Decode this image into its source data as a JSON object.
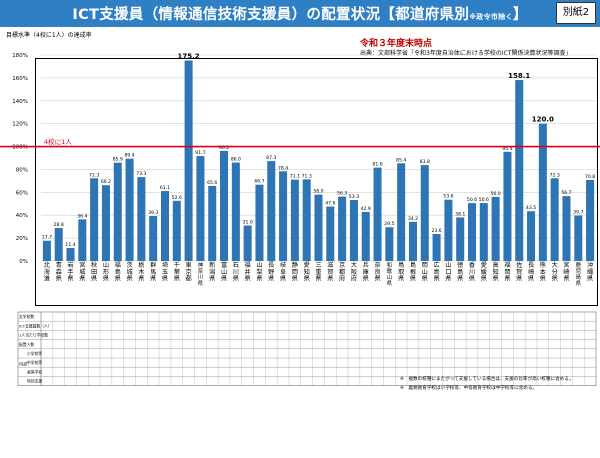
{
  "header": {
    "title_main": "ICT支援員（情報通信技術支援員）の配置状況【都道府県別",
    "title_note": "※政令市除く",
    "title_end": "】",
    "badge": "別紙2"
  },
  "annotations": {
    "y_axis_caption": "目標水準（4校に1人）の達成率",
    "period": "令和３年度末時点",
    "source": "出典：文部科学省「令和3年度自治体における学校のICT関係決算状況等調査」",
    "target_line_label": "4校に1人"
  },
  "colors": {
    "bar": "#2e75b6",
    "target_line": "#d9001b",
    "title_bg": "#2f7fc4"
  },
  "chart_data": {
    "type": "bar",
    "categories": [
      "北海道",
      "青森県",
      "岩手県",
      "宮城県",
      "秋田県",
      "山形県",
      "福島県",
      "茨城県",
      "栃木県",
      "群馬県",
      "埼玉県",
      "千葉県",
      "東京都",
      "神奈川県",
      "新潟県",
      "富山県",
      "石川県",
      "福井県",
      "山梨県",
      "長野県",
      "岐阜県",
      "静岡県",
      "愛知県",
      "三重県",
      "滋賀県",
      "京都府",
      "大阪府",
      "兵庫県",
      "奈良県",
      "和歌山県",
      "鳥取県",
      "島根県",
      "岡山県",
      "広島県",
      "山口県",
      "徳島県",
      "香川県",
      "愛媛県",
      "高知県",
      "福岡県",
      "佐賀県",
      "長崎県",
      "熊本県",
      "大分県",
      "宮崎県",
      "鹿児島県",
      "沖縄県"
    ],
    "values": [
      17.7,
      28.8,
      11.4,
      36.4,
      72.3,
      66.2,
      85.9,
      89.4,
      73.3,
      39.3,
      61.1,
      52.6,
      175.2,
      91.7,
      65.6,
      96.2,
      86.0,
      31.0,
      66.7,
      87.3,
      78.4,
      71.1,
      71.3,
      58.0,
      47.6,
      56.3,
      53.3,
      42.9,
      81.6,
      29.5,
      85.4,
      34.2,
      83.8,
      23.6,
      53.6,
      38.1,
      50.6,
      50.6,
      56.0,
      95.4,
      158.1,
      43.5,
      120.0,
      72.3,
      56.7,
      39.7,
      70.8
    ],
    "value_labels": [
      "17.7",
      "28.8",
      "11.4",
      "36.4",
      "72.3",
      "66.2",
      "85.9",
      "89.4",
      "73.3",
      "39.3",
      "61.1",
      "52.6",
      "175.2",
      "91.7",
      "65.6",
      "96.2",
      "86.0",
      "31.0",
      "66.7",
      "87.3",
      "78.4",
      "71.1",
      "71.3",
      "58.0",
      "47.6",
      "56.3",
      "53.3",
      "42.9",
      "81.6",
      "29.5",
      "85.4",
      "34.2",
      "83.8",
      "23.6",
      "53.6",
      "38.1",
      "50.6",
      "50.6",
      "56.0",
      "95.4",
      "158.1",
      "43.5",
      "120.0",
      "72.3",
      "56.7",
      "39.7",
      "70.8"
    ],
    "ylabel": "目標水準（4校に1人）の達成率",
    "yticks": [
      "0%",
      "20%",
      "40%",
      "60%",
      "80%",
      "100%",
      "120%",
      "140%",
      "160%",
      "180%"
    ],
    "ylim": [
      0,
      180
    ],
    "reference_line": 100,
    "grid": true
  },
  "table": {
    "row_labels": [
      "全学校数",
      "ICT支援員数（人）",
      "1人当たり学校数",
      "配置人数",
      "小学校等",
      "中学校等",
      "高等学校",
      "特別支援"
    ],
    "group_label": "内訳"
  },
  "footnotes": [
    "※　複数の校種にまたがって支援している場合は、支援の比率が高い校種に含める。",
    "※　義務教育学校は小学校等、中等教育学校は中学校等に含める。"
  ]
}
